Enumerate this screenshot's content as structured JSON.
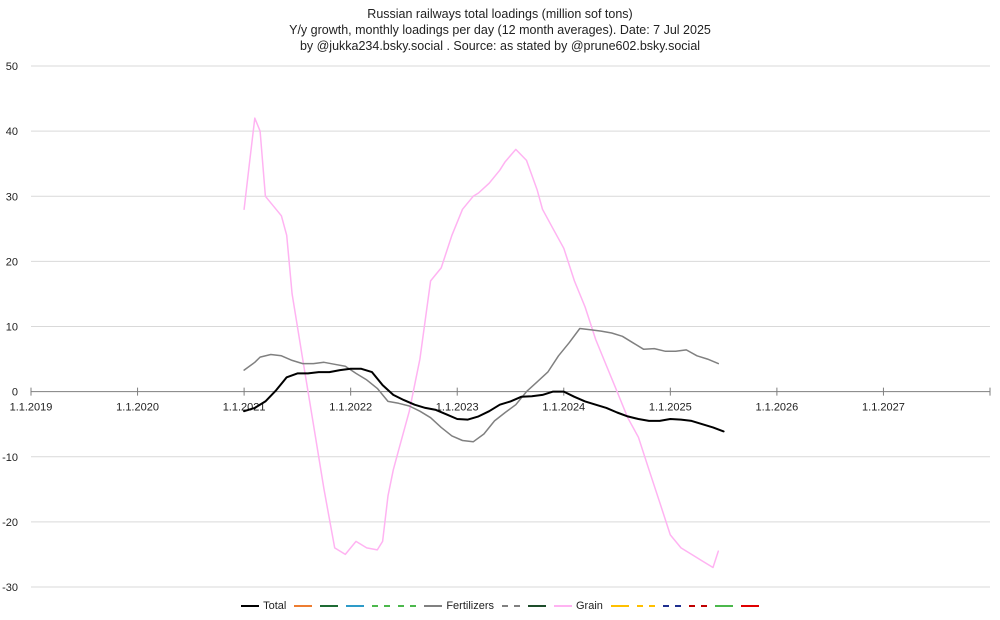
{
  "chart_data": {
    "type": "line",
    "title_lines": [
      "Russian railways total loadings (million sof tons)",
      "Y/y growth, monthly loadings per day (12 month averages). Date: 7 Jul 2025",
      "by @jukka234.bsky.social . Source: as stated by @prune602.bsky.social"
    ],
    "ylim": [
      -30,
      50
    ],
    "yticks": [
      50,
      40,
      30,
      20,
      10,
      0,
      -10,
      -20,
      -30
    ],
    "xlim": [
      2019.0,
      2028.0
    ],
    "xticks": [
      {
        "value": 2019.0,
        "label": "1.1.2019"
      },
      {
        "value": 2020.0,
        "label": "1.1.2020"
      },
      {
        "value": 2021.0,
        "label": "1.1.2021"
      },
      {
        "value": 2022.0,
        "label": "1.1.2022"
      },
      {
        "value": 2023.0,
        "label": "1.1.2023"
      },
      {
        "value": 2024.0,
        "label": "1.1.2024"
      },
      {
        "value": 2025.0,
        "label": "1.1.2025"
      },
      {
        "value": 2026.0,
        "label": "1.1.2026"
      },
      {
        "value": 2027.0,
        "label": "1.1.2027"
      }
    ],
    "grid": true,
    "legend_position": "bottom",
    "series": [
      {
        "name": "Total",
        "color": "#000000",
        "dash": "solid",
        "width": 2,
        "x": [
          2021.0,
          2021.1,
          2021.2,
          2021.3,
          2021.4,
          2021.5,
          2021.6,
          2021.7,
          2021.8,
          2021.9,
          2022.0,
          2022.1,
          2022.2,
          2022.3,
          2022.4,
          2022.5,
          2022.6,
          2022.7,
          2022.8,
          2022.9,
          2023.0,
          2023.1,
          2023.2,
          2023.3,
          2023.4,
          2023.5,
          2023.6,
          2023.7,
          2023.8,
          2023.9,
          2024.0,
          2024.1,
          2024.2,
          2024.3,
          2024.4,
          2024.5,
          2024.6,
          2024.7,
          2024.8,
          2024.9,
          2025.0,
          2025.1,
          2025.2,
          2025.3,
          2025.4,
          2025.5
        ],
        "values": [
          -3,
          -2.5,
          -1.5,
          0.2,
          2.2,
          2.8,
          2.8,
          3,
          3,
          3.3,
          3.5,
          3.5,
          3,
          1,
          -0.5,
          -1.3,
          -2,
          -2.5,
          -2.8,
          -3.5,
          -4.2,
          -4.3,
          -3.8,
          -3,
          -2,
          -1.5,
          -0.8,
          -0.7,
          -0.5,
          0,
          0,
          -0.8,
          -1.5,
          -2,
          -2.5,
          -3.2,
          -3.8,
          -4.2,
          -4.5,
          -4.5,
          -4.2,
          -4.3,
          -4.5,
          -5,
          -5.5,
          -6.1
        ]
      },
      {
        "name": "",
        "color": "#ED7D31",
        "dash": "solid",
        "width": 1.5,
        "x": [],
        "values": []
      },
      {
        "name": "",
        "color": "#1E6B34",
        "dash": "solid",
        "width": 1.5,
        "x": [],
        "values": []
      },
      {
        "name": "",
        "color": "#2E9BC8",
        "dash": "solid",
        "width": 1.5,
        "x": [],
        "values": []
      },
      {
        "name": "",
        "color": "#4CB84C",
        "dash": "dashed",
        "width": 1.5,
        "x": [],
        "values": []
      },
      {
        "name": "",
        "color": "#4CB84C",
        "dash": "dashed",
        "width": 1.5,
        "x": [],
        "values": []
      },
      {
        "name": "Fertilizers",
        "color": "#808080",
        "dash": "solid",
        "width": 1.5,
        "x": [
          2021.0,
          2021.1,
          2021.15,
          2021.25,
          2021.35,
          2021.45,
          2021.55,
          2021.65,
          2021.75,
          2021.85,
          2021.95,
          2022.05,
          2022.15,
          2022.25,
          2022.35,
          2022.45,
          2022.55,
          2022.65,
          2022.75,
          2022.85,
          2022.95,
          2023.05,
          2023.15,
          2023.25,
          2023.35,
          2023.45,
          2023.55,
          2023.65,
          2023.75,
          2023.85,
          2023.95,
          2024.05,
          2024.15,
          2024.25,
          2024.35,
          2024.45,
          2024.55,
          2024.65,
          2024.75,
          2024.85,
          2024.95,
          2025.05,
          2025.15,
          2025.25,
          2025.35,
          2025.45
        ],
        "values": [
          3.3,
          4.5,
          5.3,
          5.7,
          5.5,
          4.8,
          4.3,
          4.3,
          4.5,
          4.2,
          3.9,
          2.8,
          1.8,
          0.5,
          -1.5,
          -1.8,
          -2.2,
          -3.0,
          -4.0,
          -5.5,
          -6.8,
          -7.5,
          -7.7,
          -6.5,
          -4.5,
          -3.2,
          -2,
          0,
          1.5,
          3.0,
          5.5,
          7.5,
          9.7,
          9.5,
          9.3,
          9.0,
          8.5,
          7.5,
          6.5,
          6.6,
          6.2,
          6.2,
          6.4,
          5.5,
          5.0,
          4.3
        ]
      },
      {
        "name": "",
        "color": "#808080",
        "dash": "dashed",
        "width": 1.5,
        "x": [],
        "values": []
      },
      {
        "name": "",
        "color": "#1E4D2B",
        "dash": "solid",
        "width": 1.5,
        "x": [],
        "values": []
      },
      {
        "name": "Grain",
        "color": "#FFB3F2",
        "dash": "solid",
        "width": 1.5,
        "x": [
          2021.0,
          2021.05,
          2021.1,
          2021.15,
          2021.2,
          2021.3,
          2021.35,
          2021.4,
          2021.45,
          2021.55,
          2021.65,
          2021.75,
          2021.85,
          2021.95,
          2022.05,
          2022.15,
          2022.25,
          2022.3,
          2022.35,
          2022.4,
          2022.45,
          2022.55,
          2022.65,
          2022.75,
          2022.85,
          2022.95,
          2023.05,
          2023.15,
          2023.2,
          2023.3,
          2023.4,
          2023.45,
          2023.55,
          2023.65,
          2023.75,
          2023.8,
          2023.9,
          2024.0,
          2024.1,
          2024.2,
          2024.3,
          2024.4,
          2024.5,
          2024.6,
          2024.7,
          2024.8,
          2024.9,
          2025.0,
          2025.1,
          2025.2,
          2025.3,
          2025.4,
          2025.45
        ],
        "values": [
          28,
          35,
          42,
          40,
          30,
          28,
          27,
          24,
          15,
          5,
          -5,
          -15,
          -24,
          -25,
          -23,
          -24,
          -24.3,
          -23,
          -16,
          -12,
          -9,
          -3,
          5,
          17,
          19,
          24,
          28,
          30,
          30.5,
          32,
          34,
          35.3,
          37.2,
          35.5,
          31,
          28,
          25,
          22,
          17,
          13,
          8,
          4,
          0,
          -4,
          -7,
          -12,
          -17,
          -22,
          -24,
          -25,
          -26,
          -27,
          -24.5
        ]
      },
      {
        "name": "",
        "color": "#FFC000",
        "dash": "solid",
        "width": 1.5,
        "x": [],
        "values": []
      },
      {
        "name": "",
        "color": "#FFC000",
        "dash": "dashed",
        "width": 1.5,
        "x": [],
        "values": []
      },
      {
        "name": "",
        "color": "#1F2F8F",
        "dash": "dashed",
        "width": 1.5,
        "x": [],
        "values": []
      },
      {
        "name": "",
        "color": "#C00000",
        "dash": "dashed",
        "width": 1.5,
        "x": [],
        "values": []
      },
      {
        "name": "",
        "color": "#4CB84C",
        "dash": "solid",
        "width": 1.5,
        "x": [],
        "values": []
      },
      {
        "name": "",
        "color": "#E00000",
        "dash": "solid",
        "width": 1.5,
        "x": [],
        "values": []
      }
    ]
  }
}
